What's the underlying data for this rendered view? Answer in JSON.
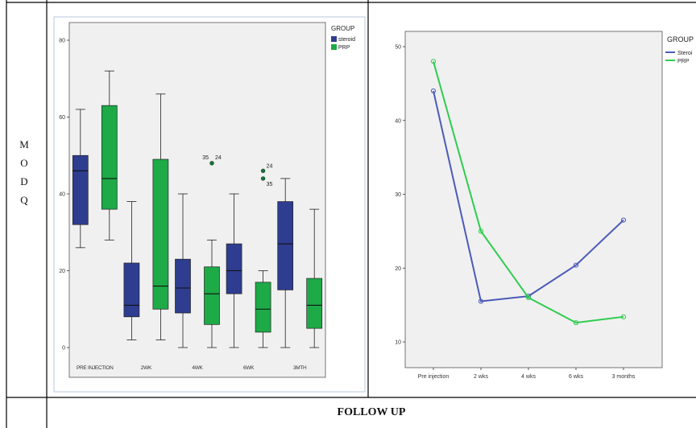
{
  "row_label": [
    "M",
    "O",
    "D",
    "Q"
  ],
  "footer": "FOLLOW UP",
  "chart_data": [
    {
      "type": "box",
      "legend_title": "GROUP",
      "legend_position": "top-right",
      "series": [
        {
          "name": "steroid",
          "color": "#2e3d8f"
        },
        {
          "name": "PRP",
          "color": "#1daa47"
        }
      ],
      "categories": [
        "PRE INJECTION",
        "2WK",
        "4WK",
        "6WK",
        "3MTH"
      ],
      "ylim": [
        0,
        80
      ],
      "yticks": [
        0,
        20,
        40,
        60,
        80
      ],
      "boxes": [
        {
          "category": "PRE INJECTION",
          "group": "steroid",
          "min": 26,
          "q1": 32,
          "median": 46,
          "q3": 50,
          "max": 62
        },
        {
          "category": "PRE INJECTION",
          "group": "PRP",
          "min": 28,
          "q1": 36,
          "median": 44,
          "q3": 63,
          "max": 72
        },
        {
          "category": "2WK",
          "group": "steroid",
          "min": 2,
          "q1": 8,
          "median": 11,
          "q3": 22,
          "max": 38
        },
        {
          "category": "2WK",
          "group": "PRP",
          "min": 2,
          "q1": 10,
          "median": 16,
          "q3": 49,
          "max": 66
        },
        {
          "category": "4WK",
          "group": "steroid",
          "min": 0,
          "q1": 9,
          "median": 15.5,
          "q3": 23,
          "max": 40
        },
        {
          "category": "4WK",
          "group": "PRP",
          "min": 0,
          "q1": 6,
          "median": 14,
          "q3": 21,
          "max": 28
        },
        {
          "category": "6WK",
          "group": "steroid",
          "min": 0,
          "q1": 14,
          "median": 20,
          "q3": 27,
          "max": 40
        },
        {
          "category": "6WK",
          "group": "PRP",
          "min": 0,
          "q1": 4,
          "median": 10,
          "q3": 17,
          "max": 20
        },
        {
          "category": "3MTH",
          "group": "steroid",
          "min": 0,
          "q1": 15,
          "median": 27,
          "q3": 38,
          "max": 44
        },
        {
          "category": "3MTH",
          "group": "PRP",
          "min": 0,
          "q1": 5,
          "median": 11,
          "q3": 18,
          "max": 36
        }
      ],
      "outliers": [
        {
          "category": "4WK",
          "group": "PRP",
          "value": 48,
          "labels": [
            "35",
            "24"
          ]
        },
        {
          "category": "6WK",
          "group": "PRP",
          "value": 46,
          "labels": [
            "24"
          ]
        },
        {
          "category": "6WK",
          "group": "PRP",
          "value": 44,
          "labels": [
            "35"
          ]
        }
      ]
    },
    {
      "type": "line",
      "legend_title": "GROUP",
      "legend_position": "top-right",
      "categories": [
        "Pre injection",
        "2 wks",
        "4 wks",
        "6 wks",
        "3 months"
      ],
      "ylim": [
        10,
        50
      ],
      "yticks": [
        10,
        20,
        30,
        40,
        50
      ],
      "series": [
        {
          "name": "Steroi",
          "color": "#4a5bb8",
          "values": [
            44,
            15.5,
            16.2,
            20.4,
            26.5
          ]
        },
        {
          "name": "PRP",
          "color": "#2fcc50",
          "values": [
            48,
            25,
            16,
            12.6,
            13.4
          ]
        }
      ]
    }
  ]
}
